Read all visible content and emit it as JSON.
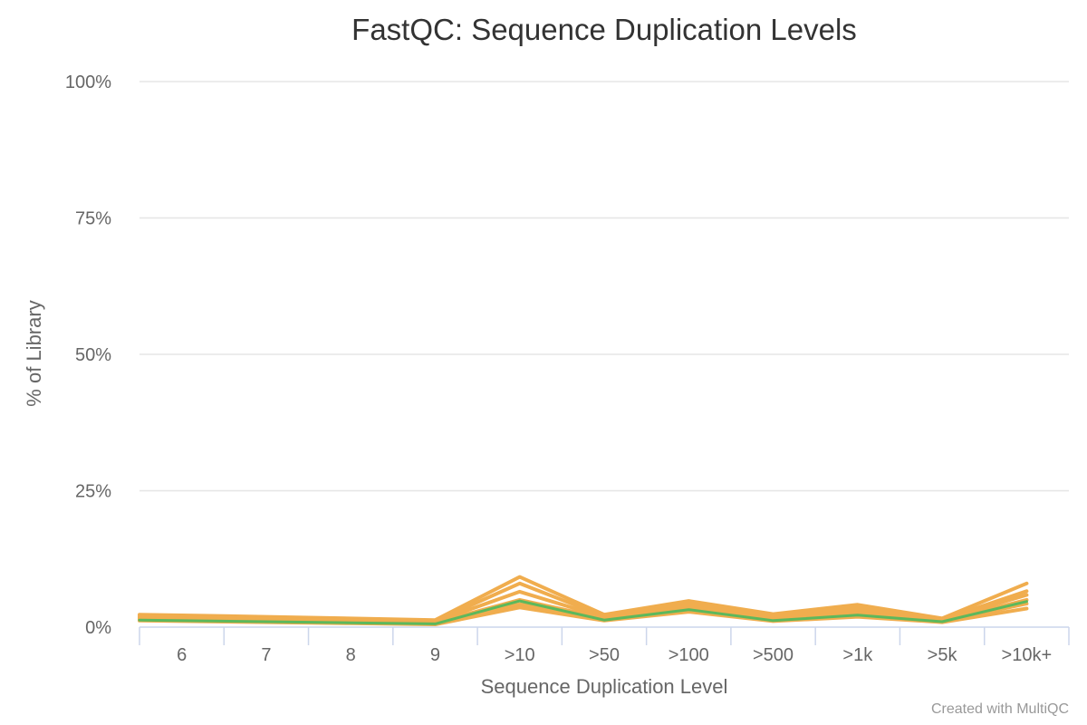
{
  "chart_data": {
    "type": "line",
    "title": "FastQC: Sequence Duplication Levels",
    "xlabel": "Sequence Duplication Level",
    "ylabel": "% of Library",
    "categories": [
      "6",
      "7",
      "8",
      "9",
      ">10",
      ">50",
      ">100",
      ">500",
      ">1k",
      ">5k",
      ">10k+"
    ],
    "ylim": [
      0,
      100
    ],
    "yticks": [
      "0%",
      "25%",
      "50%",
      "75%",
      "100%"
    ],
    "ytick_values": [
      0,
      25,
      50,
      75,
      100
    ],
    "grid": true,
    "legend": "none",
    "series": [
      {
        "color": "#f0ad4e",
        "values": [
          2.3,
          1.9,
          1.6,
          1.3,
          9.2,
          2.3,
          4.8,
          2.4,
          4.1,
          1.6,
          8.0
        ]
      },
      {
        "color": "#f0ad4e",
        "values": [
          2.0,
          1.7,
          1.4,
          1.1,
          8.0,
          2.0,
          4.2,
          2.1,
          3.6,
          1.4,
          6.6
        ]
      },
      {
        "color": "#f0ad4e",
        "values": [
          1.8,
          1.5,
          1.2,
          1.0,
          6.5,
          1.8,
          3.8,
          1.9,
          3.1,
          1.3,
          5.9
        ]
      },
      {
        "color": "#f0ad4e",
        "values": [
          1.6,
          1.3,
          1.0,
          0.8,
          5.0,
          1.6,
          3.4,
          1.6,
          2.6,
          1.1,
          5.0
        ]
      },
      {
        "color": "#f0ad4e",
        "values": [
          1.4,
          1.1,
          0.9,
          0.7,
          4.2,
          1.4,
          3.1,
          1.4,
          2.3,
          1.0,
          4.3
        ]
      },
      {
        "color": "#f0ad4e",
        "values": [
          1.2,
          0.9,
          0.7,
          0.5,
          3.6,
          1.2,
          2.8,
          1.1,
          1.9,
          0.9,
          3.4
        ]
      },
      {
        "color": "#5cb85c",
        "values": [
          1.3,
          1.0,
          0.8,
          0.6,
          4.8,
          1.3,
          3.2,
          1.2,
          2.2,
          1.0,
          4.7
        ]
      }
    ]
  },
  "credit": "Created with MultiQC"
}
